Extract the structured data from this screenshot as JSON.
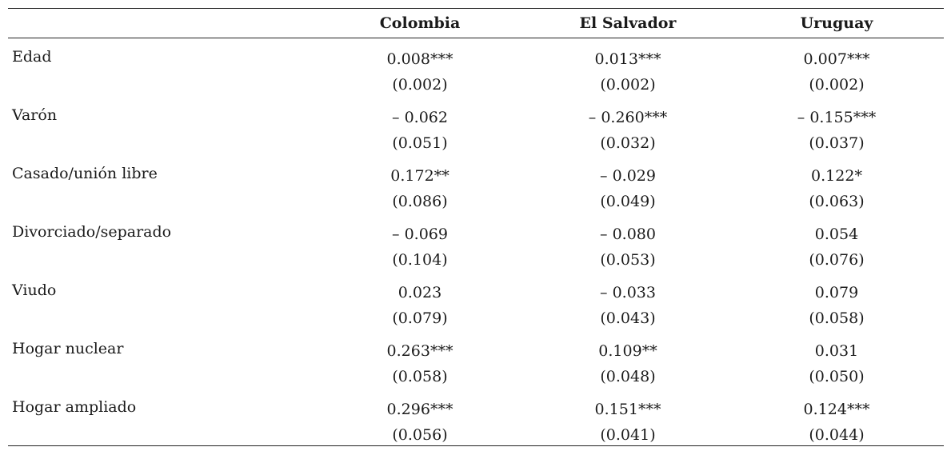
{
  "table": {
    "columns": [
      "",
      "Colombia",
      "El Salvador",
      "Uruguay"
    ],
    "rows": [
      {
        "label": "Edad",
        "values": [
          {
            "coef": "0.008***",
            "se": "(0.002)"
          },
          {
            "coef": "0.013***",
            "se": "(0.002)"
          },
          {
            "coef": "0.007***",
            "se": "(0.002)"
          }
        ]
      },
      {
        "label": "Varón",
        "values": [
          {
            "coef": "– 0.062",
            "se": "(0.051)"
          },
          {
            "coef": "– 0.260***",
            "se": "(0.032)"
          },
          {
            "coef": "– 0.155***",
            "se": "(0.037)"
          }
        ]
      },
      {
        "label": "Casado/unión libre",
        "values": [
          {
            "coef": "0.172**",
            "se": "(0.086)"
          },
          {
            "coef": "– 0.029",
            "se": "(0.049)"
          },
          {
            "coef": "0.122*",
            "se": "(0.063)"
          }
        ]
      },
      {
        "label": "Divorciado/separado",
        "values": [
          {
            "coef": "– 0.069",
            "se": "(0.104)"
          },
          {
            "coef": "– 0.080",
            "se": "(0.053)"
          },
          {
            "coef": "0.054",
            "se": "(0.076)"
          }
        ]
      },
      {
        "label": "Viudo",
        "values": [
          {
            "coef": "0.023",
            "se": "(0.079)"
          },
          {
            "coef": "– 0.033",
            "se": "(0.043)"
          },
          {
            "coef": "0.079",
            "se": "(0.058)"
          }
        ]
      },
      {
        "label": "Hogar nuclear",
        "values": [
          {
            "coef": "0.263***",
            "se": "(0.058)"
          },
          {
            "coef": "0.109**",
            "se": "(0.048)"
          },
          {
            "coef": "0.031",
            "se": "(0.050)"
          }
        ]
      },
      {
        "label": "Hogar ampliado",
        "values": [
          {
            "coef": "0.296***",
            "se": "(0.056)"
          },
          {
            "coef": "0.151***",
            "se": "(0.041)"
          },
          {
            "coef": "0.124***",
            "se": "(0.044)"
          }
        ]
      }
    ]
  }
}
